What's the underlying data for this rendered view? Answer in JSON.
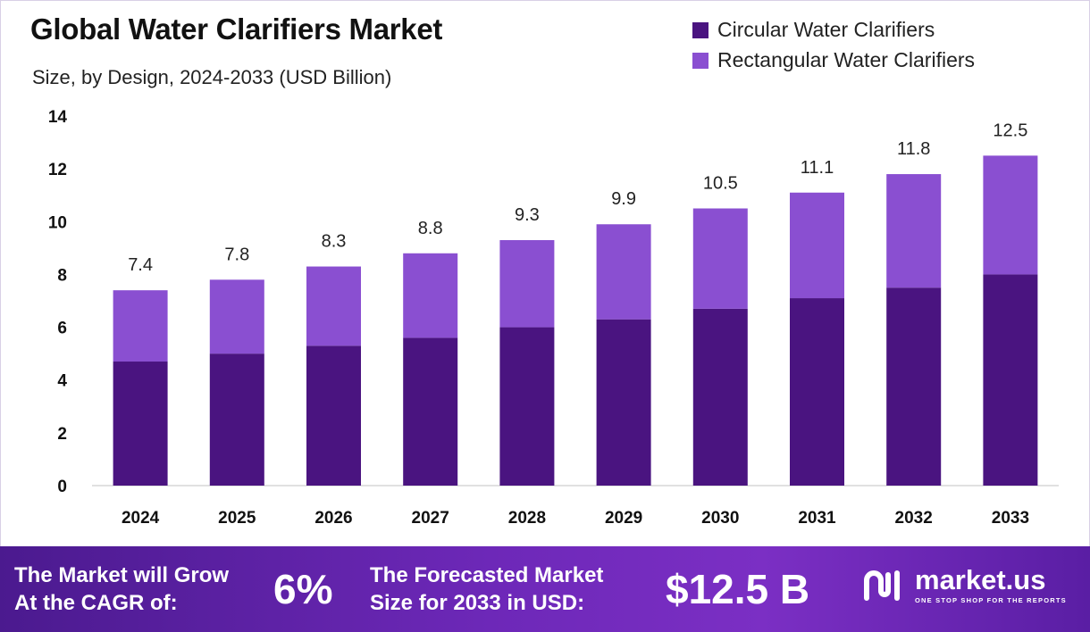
{
  "header": {
    "title": "Global Water Clarifiers Market",
    "subtitle": "Size, by Design, 2024-2033 (USD Billion)"
  },
  "legend": {
    "items": [
      {
        "label": "Circular Water Clarifiers",
        "color": "#4a1480"
      },
      {
        "label": "Rectangular Water Clarifiers",
        "color": "#8a4fd1"
      }
    ]
  },
  "chart_data": {
    "type": "bar",
    "stacked": true,
    "categories": [
      "2024",
      "2025",
      "2026",
      "2027",
      "2028",
      "2029",
      "2030",
      "2031",
      "2032",
      "2033"
    ],
    "series": [
      {
        "name": "Circular Water Clarifiers",
        "color": "#4a1480",
        "values": [
          4.7,
          5.0,
          5.3,
          5.6,
          6.0,
          6.3,
          6.7,
          7.1,
          7.5,
          8.0
        ]
      },
      {
        "name": "Rectangular Water Clarifiers",
        "color": "#8a4fd1",
        "values": [
          2.7,
          2.8,
          3.0,
          3.2,
          3.3,
          3.6,
          3.8,
          4.0,
          4.3,
          4.5
        ]
      }
    ],
    "totals": [
      "7.4",
      "7.8",
      "8.3",
      "8.8",
      "9.3",
      "9.9",
      "10.5",
      "11.1",
      "11.8",
      "12.5"
    ],
    "title": "Global Water Clarifiers Market",
    "subtitle": "Size, by Design, 2024-2033 (USD Billion)",
    "ylim": [
      0,
      14
    ],
    "yticks": [
      0,
      2,
      4,
      6,
      8,
      10,
      12,
      14
    ],
    "grid": false,
    "legend_position": "top-right"
  },
  "footer": {
    "cagr_text_line1": "The Market will Grow",
    "cagr_text_line2": "At the CAGR of:",
    "cagr_value": "6%",
    "forecast_text_line1": "The Forecasted Market",
    "forecast_text_line2": "Size for 2033 in USD:",
    "forecast_value": "$12.5 B",
    "brand_name": "market.us",
    "brand_tagline": "ONE STOP SHOP FOR THE REPORTS"
  }
}
